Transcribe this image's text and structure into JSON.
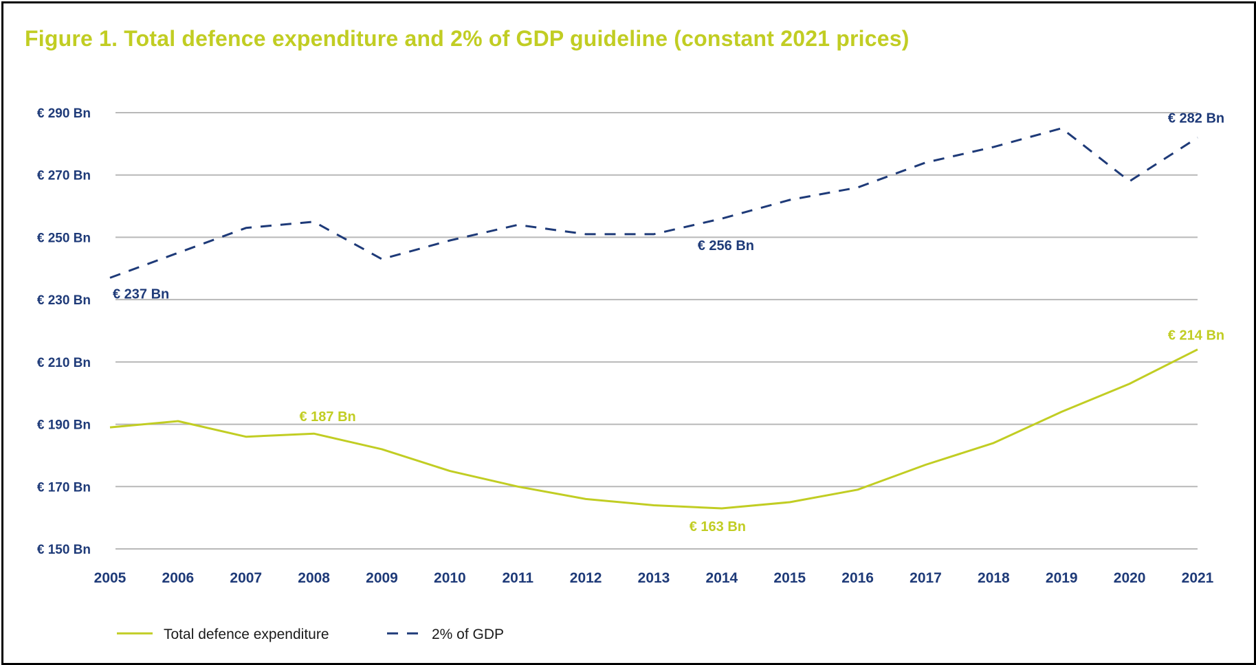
{
  "chart_data": {
    "type": "line",
    "title": "Figure 1. Total defence expenditure and 2% of GDP guideline (constant 2021 prices)",
    "x": [
      "2005",
      "2006",
      "2007",
      "2008",
      "2009",
      "2010",
      "2011",
      "2012",
      "2013",
      "2014",
      "2015",
      "2016",
      "2017",
      "2018",
      "2019",
      "2020",
      "2021"
    ],
    "ylim": [
      150,
      290
    ],
    "yticks": [
      150,
      170,
      190,
      210,
      230,
      250,
      270,
      290
    ],
    "ytick_labels": [
      "€ 150 Bn",
      "€ 170 Bn",
      "€ 190 Bn",
      "€ 210 Bn",
      "€ 230 Bn",
      "€ 250 Bn",
      "€ 270 Bn",
      "€ 290 Bn"
    ],
    "grid": true,
    "legend_position": "bottom-left",
    "series": [
      {
        "name": "Total defence expenditure",
        "style": "solid",
        "color": "#c1cd23",
        "values": [
          189,
          191,
          186,
          187,
          182,
          175,
          170,
          166,
          164,
          163,
          165,
          169,
          177,
          184,
          194,
          203,
          214
        ]
      },
      {
        "name": "2% of GDP",
        "style": "dashed",
        "color": "#1e3a78",
        "values": [
          237,
          245,
          253,
          255,
          243,
          249,
          254,
          251,
          251,
          256,
          262,
          266,
          274,
          279,
          285,
          268,
          282
        ]
      }
    ],
    "annotations": [
      {
        "text": "€ 237 Bn",
        "series": "2% of GDP",
        "x": "2005"
      },
      {
        "text": "€ 256 Bn",
        "series": "2% of GDP",
        "x": "2014"
      },
      {
        "text": "€ 282 Bn",
        "series": "2% of GDP",
        "x": "2021"
      },
      {
        "text": "€ 187 Bn",
        "series": "Total defence expenditure",
        "x": "2008"
      },
      {
        "text": "€ 163 Bn",
        "series": "Total defence expenditure",
        "x": "2014"
      },
      {
        "text": "€ 214 Bn",
        "series": "Total defence expenditure",
        "x": "2021"
      }
    ]
  }
}
